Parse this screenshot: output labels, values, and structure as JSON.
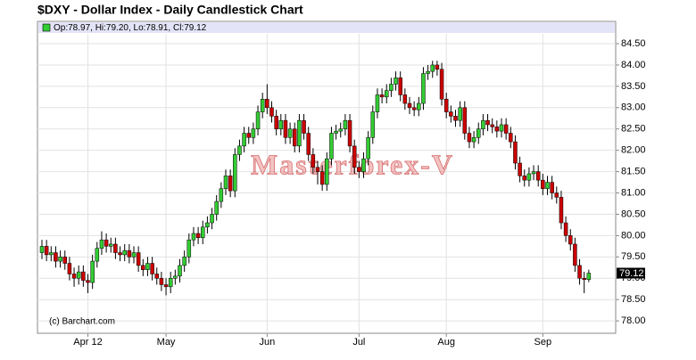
{
  "chart_data": {
    "type": "candlestick",
    "title": "$DXY - Dollar Index - Daily Candlestick Chart",
    "legend_text": "Op:78.97, Hi:79.20, Lo:78.91, Cl:79.12",
    "watermark": "Masterforex-V",
    "credit": "(c) Barchart.com",
    "last_label": "79.12",
    "up_color": "#33cc33",
    "down_color": "#cc0000",
    "grid": true,
    "ylim": [
      77.71,
      84.73
    ],
    "yticks": [
      {
        "value": 78,
        "label": "78.00"
      },
      {
        "value": 78.5,
        "label": "78.50"
      },
      {
        "value": 79,
        "label": "79.00"
      },
      {
        "value": 79.5,
        "label": "79.50"
      },
      {
        "value": 80,
        "label": "80.00"
      },
      {
        "value": 80.5,
        "label": "80.50"
      },
      {
        "value": 81,
        "label": "81.00"
      },
      {
        "value": 81.5,
        "label": "81.50"
      },
      {
        "value": 82,
        "label": "82.00"
      },
      {
        "value": 82.5,
        "label": "82.50"
      },
      {
        "value": 83,
        "label": "83.00"
      },
      {
        "value": 83.5,
        "label": "83.50"
      },
      {
        "value": 84,
        "label": "84.00"
      },
      {
        "value": 84.5,
        "label": "84.50"
      }
    ],
    "categories": [
      null,
      null,
      null,
      null,
      null,
      null,
      null,
      null,
      null,
      null,
      "Apr 12",
      null,
      null,
      null,
      null,
      null,
      null,
      null,
      null,
      null,
      null,
      null,
      null,
      null,
      null,
      null,
      null,
      "May",
      null,
      null,
      null,
      null,
      null,
      null,
      null,
      null,
      null,
      null,
      null,
      null,
      null,
      null,
      null,
      null,
      null,
      null,
      null,
      null,
      null,
      "Jun",
      null,
      null,
      null,
      null,
      null,
      null,
      null,
      null,
      null,
      null,
      null,
      null,
      null,
      null,
      null,
      null,
      null,
      null,
      null,
      "Jul",
      null,
      null,
      null,
      null,
      null,
      null,
      null,
      null,
      null,
      null,
      null,
      null,
      null,
      null,
      null,
      null,
      null,
      null,
      "Aug",
      null,
      null,
      null,
      null,
      null,
      null,
      null,
      null,
      null,
      null,
      null,
      null,
      null,
      null,
      null,
      null,
      null,
      null,
      null,
      null,
      "Sep",
      null,
      null,
      null,
      null,
      null,
      null,
      null,
      null,
      null,
      null
    ],
    "open": [
      79.6,
      79.75,
      79.55,
      79.6,
      79.4,
      79.5,
      79.35,
      79.1,
      79.0,
      79.15,
      78.95,
      78.9,
      79.4,
      79.7,
      79.9,
      79.75,
      79.8,
      79.6,
      79.55,
      79.65,
      79.5,
      79.6,
      79.3,
      79.2,
      79.35,
      79.1,
      79.0,
      78.85,
      78.8,
      79.0,
      79.05,
      79.3,
      79.5,
      79.9,
      80.05,
      79.95,
      80.2,
      80.3,
      80.5,
      80.8,
      81.1,
      81.4,
      81.05,
      81.9,
      82.1,
      82.4,
      82.3,
      82.5,
      82.9,
      83.2,
      83.0,
      82.8,
      82.5,
      82.7,
      82.3,
      82.5,
      82.1,
      82.7,
      82.4,
      81.9,
      81.6,
      81.5,
      81.2,
      81.8,
      82.4,
      82.45,
      82.5,
      82.7,
      82.1,
      81.6,
      81.5,
      81.8,
      82.3,
      82.9,
      83.3,
      83.25,
      83.4,
      83.55,
      83.7,
      83.3,
      83.1,
      83.0,
      82.95,
      83.1,
      83.8,
      83.85,
      84.0,
      83.9,
      83.2,
      82.9,
      82.8,
      82.7,
      83.0,
      82.4,
      82.2,
      82.3,
      82.5,
      82.7,
      82.6,
      82.55,
      82.45,
      82.6,
      82.4,
      82.2,
      81.7,
      81.4,
      81.3,
      81.45,
      81.5,
      81.3,
      81.1,
      81.25,
      81.0,
      80.9,
      80.3,
      80.0,
      79.8,
      79.3,
      79.0,
      78.97
    ],
    "high": [
      79.9,
      79.9,
      79.75,
      79.75,
      79.65,
      79.65,
      79.5,
      79.25,
      79.3,
      79.3,
      79.1,
      79.55,
      79.85,
      80.1,
      80.05,
      79.95,
      79.95,
      79.75,
      79.8,
      79.8,
      79.75,
      79.75,
      79.45,
      79.5,
      79.5,
      79.25,
      79.15,
      79.0,
      79.15,
      79.2,
      79.45,
      79.65,
      80.05,
      80.2,
      80.2,
      80.35,
      80.45,
      80.65,
      80.95,
      81.25,
      81.55,
      81.55,
      82.05,
      82.25,
      82.55,
      82.55,
      82.65,
      83.05,
      83.35,
      83.55,
      83.15,
      82.95,
      82.85,
      82.85,
      82.65,
      82.65,
      82.85,
      82.85,
      82.55,
      82.05,
      81.75,
      81.65,
      81.95,
      82.55,
      82.6,
      82.65,
      82.85,
      82.85,
      82.25,
      81.75,
      81.95,
      82.45,
      83.05,
      83.45,
      83.45,
      83.55,
      83.7,
      83.85,
      83.85,
      83.45,
      83.25,
      83.15,
      83.25,
      83.95,
      84.0,
      84.1,
      84.1,
      84.05,
      83.35,
      83.05,
      82.95,
      83.15,
      83.15,
      82.55,
      82.45,
      82.65,
      82.85,
      82.85,
      82.75,
      82.7,
      82.75,
      82.75,
      82.55,
      82.35,
      81.85,
      81.55,
      81.6,
      81.65,
      81.65,
      81.45,
      81.4,
      81.4,
      81.15,
      81.05,
      80.45,
      80.15,
      79.95,
      79.45,
      79.15,
      79.2
    ],
    "low": [
      79.45,
      79.4,
      79.4,
      79.25,
      79.25,
      79.2,
      78.95,
      78.8,
      78.85,
      78.8,
      78.65,
      78.75,
      79.25,
      79.55,
      79.6,
      79.6,
      79.45,
      79.4,
      79.4,
      79.35,
      79.35,
      79.15,
      79.05,
      79.05,
      78.95,
      78.85,
      78.7,
      78.6,
      78.65,
      78.85,
      78.9,
      79.15,
      79.35,
      79.75,
      79.8,
      79.8,
      80.05,
      80.15,
      80.35,
      80.65,
      80.95,
      80.9,
      80.9,
      81.75,
      81.95,
      82.15,
      82.15,
      82.35,
      82.75,
      82.85,
      82.65,
      82.35,
      82.35,
      82.15,
      82.15,
      81.95,
      81.95,
      82.25,
      81.75,
      81.45,
      81.2,
      81.05,
      81.05,
      81.65,
      82.25,
      82.3,
      82.35,
      81.95,
      81.45,
      81.35,
      81.35,
      81.65,
      82.15,
      82.75,
      83.1,
      83.1,
      83.25,
      83.4,
      83.15,
      82.95,
      82.85,
      82.8,
      82.8,
      82.95,
      83.65,
      83.7,
      83.75,
      83.05,
      82.75,
      82.65,
      82.55,
      82.55,
      82.25,
      82.05,
      82.05,
      82.15,
      82.35,
      82.45,
      82.4,
      82.3,
      82.3,
      82.25,
      82.05,
      81.55,
      81.25,
      81.15,
      81.15,
      81.3,
      81.15,
      80.95,
      80.95,
      80.85,
      80.75,
      80.15,
      79.85,
      79.65,
      79.15,
      78.85,
      78.65,
      78.91
    ],
    "close": [
      79.75,
      79.55,
      79.6,
      79.4,
      79.5,
      79.35,
      79.1,
      79.0,
      79.15,
      78.95,
      78.9,
      79.4,
      79.7,
      79.9,
      79.75,
      79.8,
      79.6,
      79.55,
      79.65,
      79.5,
      79.6,
      79.3,
      79.2,
      79.35,
      79.1,
      79.0,
      78.85,
      78.8,
      79.0,
      79.05,
      79.3,
      79.5,
      79.9,
      80.05,
      79.95,
      80.2,
      80.3,
      80.5,
      80.8,
      81.1,
      81.4,
      81.05,
      81.9,
      82.1,
      82.4,
      82.3,
      82.5,
      82.9,
      83.2,
      83.0,
      82.8,
      82.5,
      82.7,
      82.3,
      82.5,
      82.1,
      82.7,
      82.4,
      81.9,
      81.6,
      81.5,
      81.2,
      81.8,
      82.4,
      82.45,
      82.5,
      82.7,
      82.1,
      81.6,
      81.5,
      81.8,
      82.3,
      82.9,
      83.3,
      83.25,
      83.4,
      83.55,
      83.7,
      83.3,
      83.1,
      83.0,
      82.95,
      83.1,
      83.8,
      83.85,
      84.0,
      83.9,
      83.2,
      82.9,
      82.8,
      82.7,
      83.0,
      82.4,
      82.2,
      82.3,
      82.5,
      82.7,
      82.6,
      82.55,
      82.45,
      82.6,
      82.4,
      82.2,
      81.7,
      81.4,
      81.3,
      81.45,
      81.5,
      81.3,
      81.1,
      81.25,
      81.0,
      80.9,
      80.3,
      80.0,
      79.8,
      79.3,
      79.0,
      78.97,
      79.12
    ]
  }
}
